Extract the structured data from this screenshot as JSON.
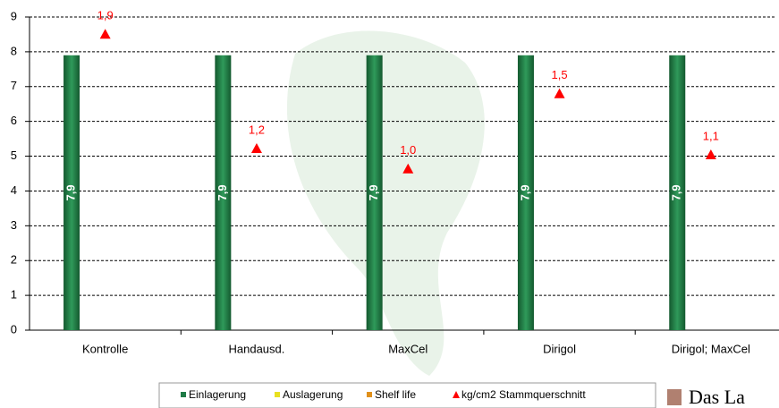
{
  "chart_data": {
    "type": "bar",
    "categories": [
      "Kontrolle",
      "Handausd.",
      "MaxCel",
      "Dirigol",
      "Dirigol; MaxCel"
    ],
    "series": [
      {
        "name": "Einlagerung",
        "color": "#1e7a46",
        "values": [
          7.9,
          7.9,
          7.9,
          7.9,
          7.9
        ],
        "value_labels": [
          "7,9",
          "7,9",
          "7,9",
          "7,9",
          "7,9"
        ]
      },
      {
        "name": "Auslagerung",
        "color": "#e8e020",
        "values": [
          null,
          null,
          null,
          null,
          null
        ]
      },
      {
        "name": "Shelf life",
        "color": "#e0901a",
        "values": [
          null,
          null,
          null,
          null,
          null
        ]
      },
      {
        "name": "kg/cm2 Stammquerschnitt",
        "color": "#ff0000",
        "type": "scatter",
        "axis": "y2",
        "values": [
          1.89,
          1.16,
          1.03,
          1.51,
          1.12
        ],
        "value_labels": [
          "1,9",
          "1,2",
          "1,0",
          "1,5",
          "1,1"
        ]
      }
    ],
    "ylim": [
      0,
      9
    ],
    "yticks": [
      0,
      1,
      2,
      3,
      4,
      5,
      6,
      7,
      8,
      9
    ],
    "y2lim": [
      0,
      2
    ],
    "grid": true,
    "legend": "bottom",
    "logo_text": "Das La"
  }
}
